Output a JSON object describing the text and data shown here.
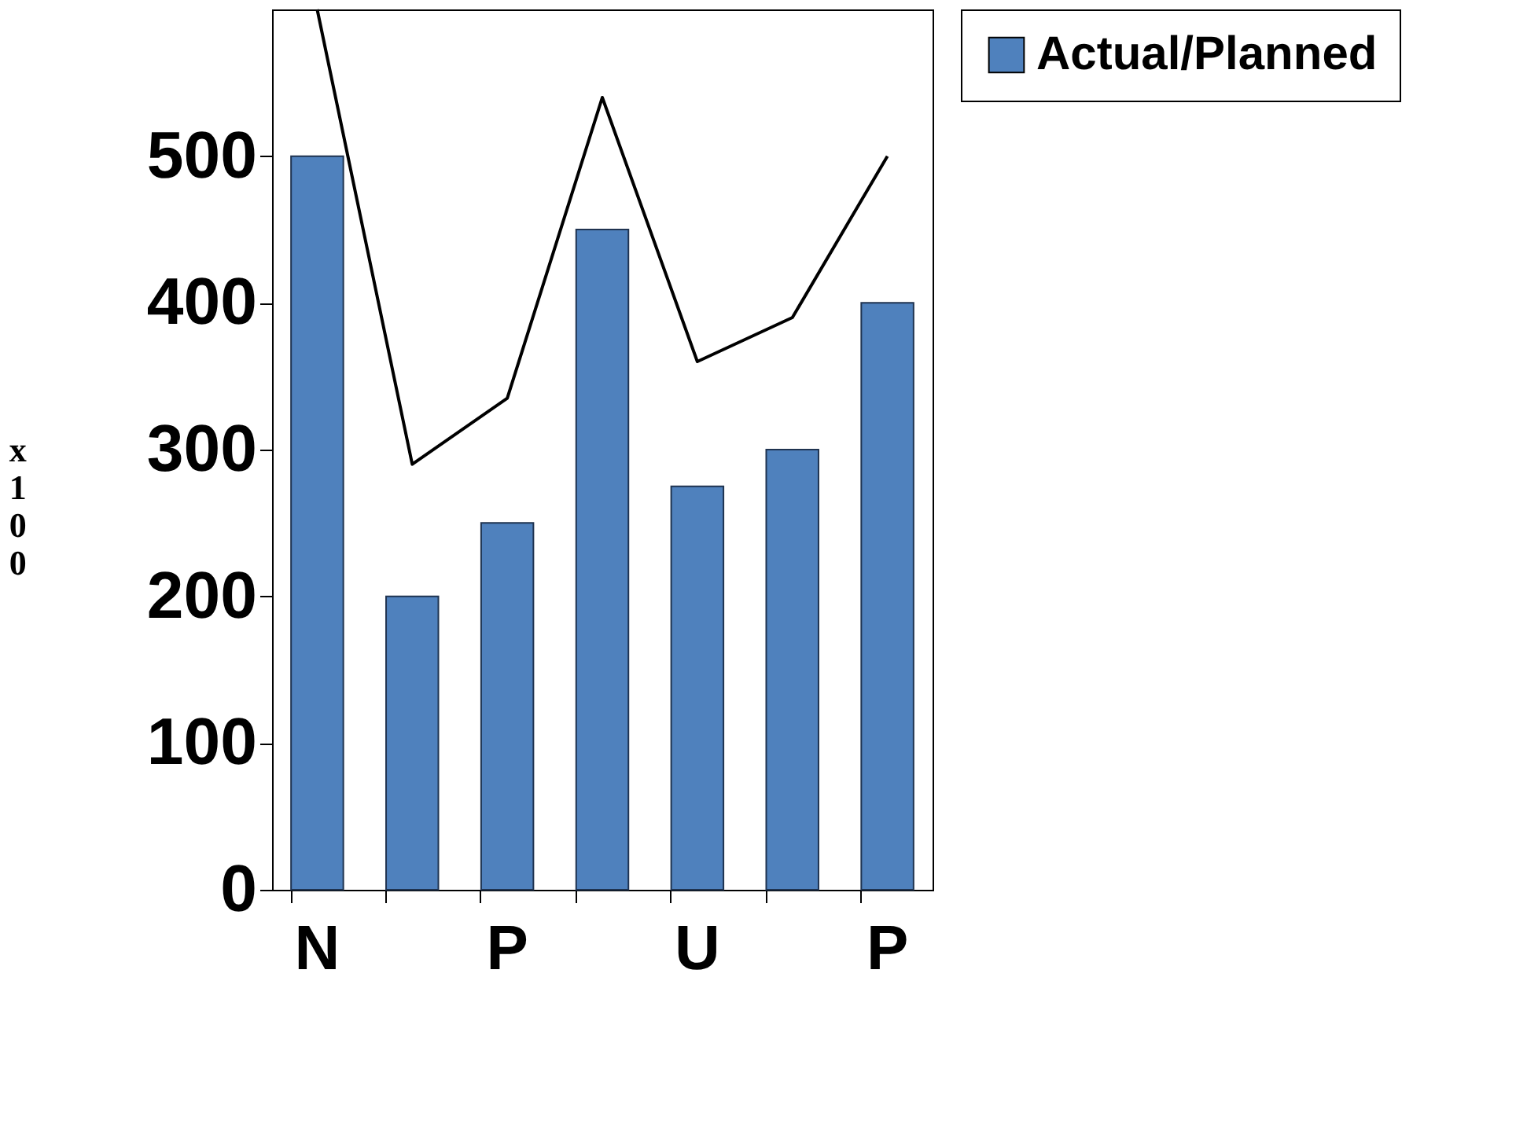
{
  "chart_data": {
    "type": "bar",
    "ylabel": "x100",
    "categories": [
      "N",
      null,
      "P",
      null,
      "U",
      null,
      "P"
    ],
    "series": [
      {
        "name": "Actual/Planned",
        "color": "#4f81bd",
        "values": [
          500,
          200,
          250,
          450,
          275,
          300,
          400
        ]
      },
      {
        "type": "line",
        "color": "#000000",
        "values": [
          600,
          290,
          335,
          540,
          360,
          390,
          500
        ]
      }
    ],
    "ylim": [
      0,
      600
    ],
    "yticks": [
      0,
      100,
      200,
      300,
      400,
      500
    ],
    "grid": false,
    "legend": "top right",
    "marker": "none",
    "line_style": "solid"
  }
}
